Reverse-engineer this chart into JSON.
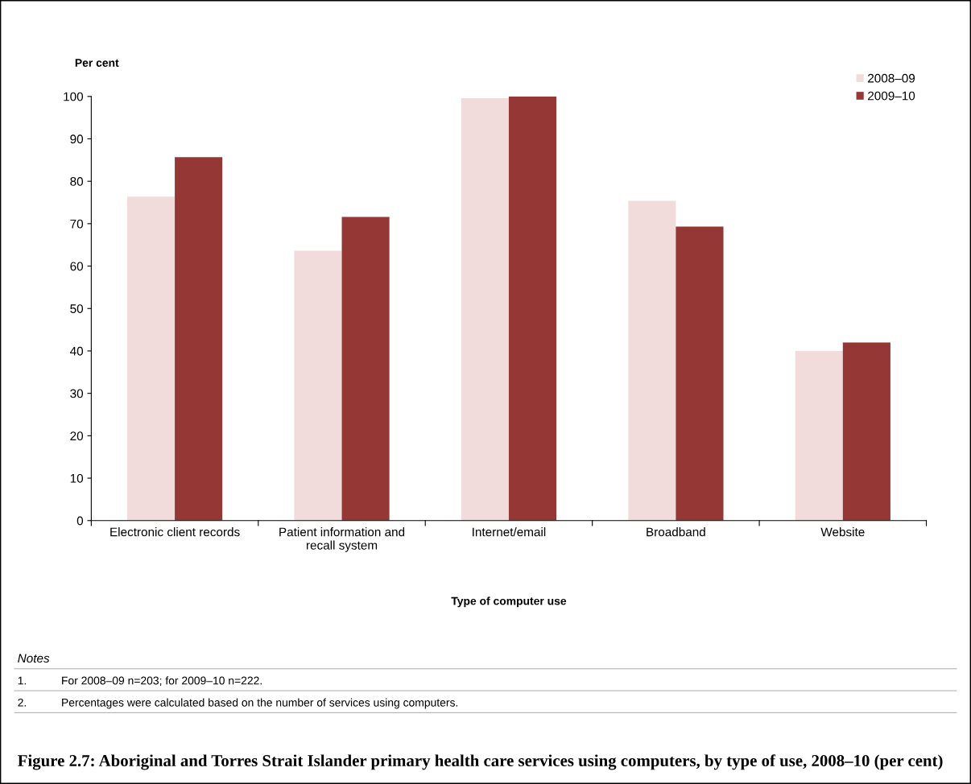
{
  "chart_data": {
    "type": "bar",
    "title": "Figure 2.7: Aboriginal and Torres Strait Islander primary health care services using computers, by type of use, 2008–10 (per cent)",
    "ylabel": "Per cent",
    "xlabel": "Type of computer use",
    "categories": [
      "Electronic client records",
      "Patient information and\nrecall system",
      "Internet/email",
      "Broadband",
      "Website"
    ],
    "series": [
      {
        "name": "2008–09",
        "color": "#f2dcdb",
        "values": [
          76.4,
          63.6,
          99.6,
          75.4,
          40.0
        ]
      },
      {
        "name": "2009–10",
        "color": "#953735",
        "values": [
          85.7,
          71.6,
          100.0,
          69.3,
          42.0
        ]
      }
    ],
    "ylim": [
      0,
      100
    ],
    "yticks": [
      0,
      10,
      20,
      30,
      40,
      50,
      60,
      70,
      80,
      90,
      100
    ],
    "grid": false,
    "legend": "top right",
    "annotations": [
      "Notes",
      "1.\tFor 2008–09 n=203; for 2009–10 n=222.",
      "2.\tPercentages were calculated based on the number of services using computers."
    ]
  }
}
